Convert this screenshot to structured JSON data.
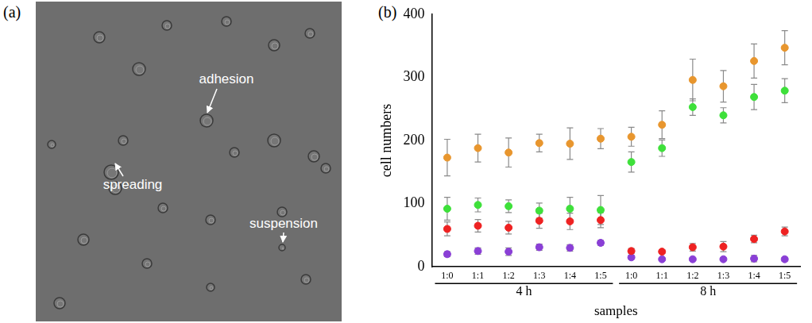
{
  "figure": {
    "panels": [
      {
        "letter": "(a)",
        "annotations": [
          "adhesion",
          "spreading",
          "suspension"
        ]
      },
      {
        "letter": "(b)"
      }
    ]
  },
  "chart_data": {
    "type": "scatter",
    "x_label": "samples",
    "y_label": "cell numbers",
    "categories": [
      "1:0",
      "1:1",
      "1:2",
      "1:3",
      "1:4",
      "1:5",
      "1:0",
      "1:1",
      "1:2",
      "1:3",
      "1:4",
      "1:5"
    ],
    "group_labels": [
      "4 h",
      "4 h",
      "4 h",
      "4 h",
      "4 h",
      "4 h",
      "8 h",
      "8 h",
      "8 h",
      "8 h",
      "8 h",
      "8 h"
    ],
    "ylim": [
      0,
      400
    ],
    "yticks": [
      0,
      100,
      200,
      300,
      400
    ],
    "grid": false,
    "marker": "circle",
    "series": [
      {
        "color": "#e8962e",
        "values": [
          173,
          188,
          181,
          196,
          195,
          203,
          206,
          225,
          296,
          286,
          326,
          347
        ],
        "errors": [
          29,
          22,
          23,
          14,
          25,
          16,
          15,
          22,
          33,
          25,
          27,
          27
        ]
      },
      {
        "color": "#3ee03a",
        "values": [
          92,
          98,
          96,
          89,
          92,
          90,
          166,
          188,
          253,
          240,
          269,
          279
        ],
        "errors": [
          18,
          11,
          10,
          12,
          18,
          23,
          16,
          13,
          13,
          12,
          20,
          19
        ]
      },
      {
        "color": "#ee2222",
        "values": [
          60,
          65,
          62,
          73,
          72,
          74,
          25,
          24,
          31,
          32,
          44,
          56
        ],
        "errors": [
          11,
          10,
          10,
          12,
          13,
          12,
          4,
          3,
          6,
          8,
          6,
          7
        ]
      },
      {
        "color": "#8a3fd6",
        "values": [
          20,
          25,
          24,
          31,
          30,
          38,
          15,
          12,
          12,
          12,
          13,
          12
        ],
        "errors": [
          4,
          5,
          6,
          5,
          5,
          4,
          3,
          2,
          2,
          2,
          5,
          3
        ]
      }
    ]
  }
}
